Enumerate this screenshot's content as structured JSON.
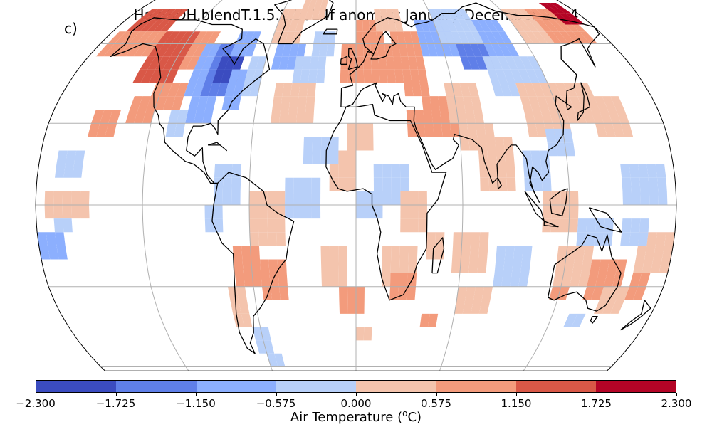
{
  "title": "HadISDH.blendT.1.5.1.2024f anomaly January-December 2014",
  "panel_label": "c)",
  "colorbar": {
    "label_prefix": "Air Temperature (",
    "label_sup": "o",
    "label_suffix": "C)",
    "ticks": [
      "−2.300",
      "−1.725",
      "−1.150",
      "−0.575",
      "0.000",
      "0.575",
      "1.150",
      "1.725",
      "2.300"
    ],
    "tick_values": [
      -2.3,
      -1.725,
      -1.15,
      -0.575,
      0.0,
      0.575,
      1.15,
      1.725,
      2.3
    ],
    "colors": [
      "#3b4cc0",
      "#5f7fe8",
      "#8caffe",
      "#b8d0f9",
      "#f4c4ad",
      "#f39b7c",
      "#d95847",
      "#b40426"
    ]
  },
  "map": {
    "projection": "Robinson",
    "coastline_color": "#000000",
    "grid_color": "#b0b0b0"
  }
}
